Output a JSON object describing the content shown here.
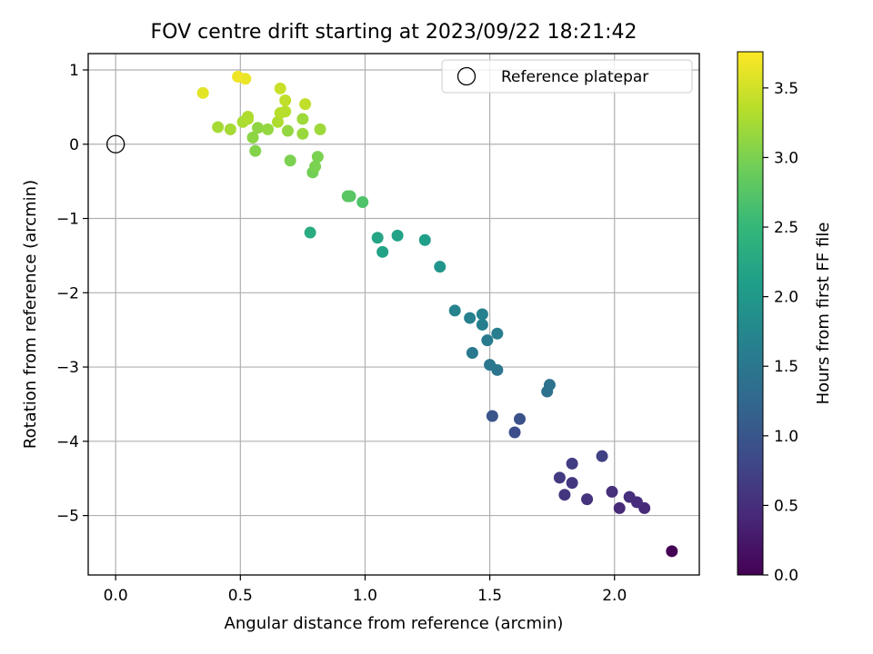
{
  "chart_data": {
    "type": "scatter",
    "title": "FOV centre drift starting at 2023/09/22 18:21:42",
    "xlabel": "Angular distance from reference (arcmin)",
    "ylabel": "Rotation from reference (arcmin)",
    "xlim": [
      -0.11,
      2.34
    ],
    "ylim": [
      -5.8,
      1.22
    ],
    "xticks": [
      0.0,
      0.5,
      1.0,
      1.5,
      2.0
    ],
    "xtick_labels": [
      "0.0",
      "0.5",
      "1.0",
      "1.5",
      "2.0"
    ],
    "yticks": [
      1,
      0,
      -1,
      -2,
      -3,
      -4,
      -5
    ],
    "ytick_labels": [
      "1",
      "0",
      "−1",
      "−2",
      "−3",
      "−4",
      "−5"
    ],
    "grid": true,
    "legend": {
      "placement": "top-right",
      "entries": [
        "Reference platepar"
      ]
    },
    "reference_point": {
      "x": 0.0,
      "y": 0.0,
      "label": "Reference platepar"
    },
    "colorbar": {
      "label": "Hours from first FF file",
      "colormap": "viridis",
      "range": [
        0.0,
        3.76
      ],
      "ticks": [
        0.0,
        0.5,
        1.0,
        1.5,
        2.0,
        2.5,
        3.0,
        3.5
      ],
      "tick_labels": [
        "0.0",
        "0.5",
        "1.0",
        "1.5",
        "2.0",
        "2.5",
        "3.0",
        "3.5"
      ]
    },
    "series": [
      {
        "x": [
          2.23,
          2.02,
          2.12,
          2.09,
          2.06,
          1.99,
          1.89,
          1.8,
          1.83,
          1.78,
          1.83,
          1.95,
          1.6,
          1.62,
          1.51,
          1.73,
          1.74,
          1.53,
          1.5,
          1.43,
          1.49,
          1.53,
          1.47,
          1.42,
          1.47,
          1.36,
          1.3,
          1.24,
          1.13,
          1.07,
          1.05,
          0.78,
          0.99,
          0.94,
          0.93,
          0.79,
          0.8,
          0.81,
          0.7,
          0.56,
          0.55,
          0.57,
          0.61,
          0.69,
          0.75,
          0.75,
          0.46,
          0.41,
          0.51,
          0.53,
          0.53,
          0.82,
          0.65,
          0.66,
          0.68,
          0.68,
          0.76,
          0.66,
          0.52,
          0.49,
          0.35
        ],
        "y": [
          -5.48,
          -4.9,
          -4.9,
          -4.82,
          -4.75,
          -4.68,
          -4.78,
          -4.72,
          -4.56,
          -4.49,
          -4.3,
          -4.2,
          -3.88,
          -3.7,
          -3.66,
          -3.33,
          -3.24,
          -3.04,
          -2.97,
          -2.81,
          -2.64,
          -2.55,
          -2.43,
          -2.34,
          -2.29,
          -2.24,
          -1.65,
          -1.29,
          -1.23,
          -1.45,
          -1.26,
          -1.19,
          -0.78,
          -0.7,
          -0.7,
          -0.38,
          -0.3,
          -0.17,
          -0.22,
          -0.09,
          0.09,
          0.22,
          0.2,
          0.18,
          0.14,
          0.34,
          0.2,
          0.23,
          0.3,
          0.37,
          0.34,
          0.2,
          0.3,
          0.42,
          0.44,
          0.59,
          0.54,
          0.75,
          0.88,
          0.91,
          0.69
        ],
        "hours": [
          0.0,
          0.45,
          0.45,
          0.48,
          0.5,
          0.52,
          0.55,
          0.58,
          0.62,
          0.65,
          0.68,
          0.72,
          0.9,
          0.95,
          1.0,
          1.4,
          1.42,
          1.48,
          1.5,
          1.52,
          1.55,
          1.6,
          1.62,
          1.64,
          1.66,
          1.68,
          1.95,
          2.1,
          2.15,
          2.15,
          2.2,
          2.3,
          2.7,
          2.75,
          2.78,
          2.95,
          3.0,
          3.0,
          3.0,
          3.05,
          3.1,
          3.12,
          3.15,
          3.15,
          3.18,
          3.2,
          3.25,
          3.25,
          3.28,
          3.3,
          3.3,
          3.2,
          3.3,
          3.35,
          3.35,
          3.4,
          3.4,
          3.45,
          3.65,
          3.68,
          3.6
        ]
      }
    ]
  }
}
